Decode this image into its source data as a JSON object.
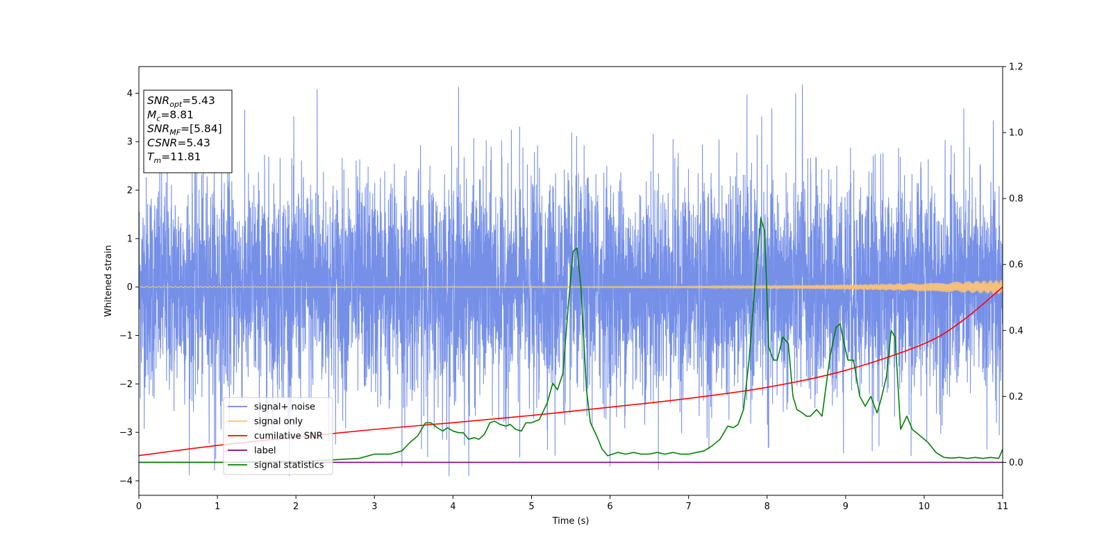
{
  "chart_data": {
    "type": "line",
    "xlabel": "Time (s)",
    "ylabel": "Whitened strain",
    "xlim": [
      0,
      11
    ],
    "ylim": [
      -4.3,
      4.55
    ],
    "y2lim": [
      -0.1,
      1.2
    ],
    "xticks": [
      0,
      1,
      2,
      3,
      4,
      5,
      6,
      7,
      8,
      9,
      10,
      11
    ],
    "yticks": [
      -4,
      -3,
      -2,
      -1,
      0,
      1,
      2,
      3,
      4
    ],
    "y2ticks": [
      "0.0",
      "0.2",
      "0.4",
      "0.6",
      "0.8",
      "1.0",
      "1.2"
    ],
    "legend_position": "lower-left",
    "info_box": {
      "position": "top-left",
      "lines": [
        {
          "sym": "SNR",
          "sub": "opt",
          "value": "=5.43"
        },
        {
          "sym": "M",
          "sub": "c",
          "value": "=8.81"
        },
        {
          "sym": "SNR",
          "sub": "MF",
          "value": "=[5.84]"
        },
        {
          "sym": "CSNR",
          "sub": "",
          "value": "=5.43"
        },
        {
          "sym": "T",
          "sub": "m",
          "value": "=11.81"
        }
      ]
    },
    "noise_band": {
      "typical_amplitude": 1.8,
      "spike_max": 4.18,
      "spike_min": -3.9,
      "large_spikes": [
        {
          "x": 2.27,
          "y": 4.08
        },
        {
          "x": 4.07,
          "y": 4.13
        },
        {
          "x": 8.45,
          "y": 4.18
        },
        {
          "x": 7.93,
          "y": 3.52
        },
        {
          "x": 10.88,
          "y": 3.43
        },
        {
          "x": 4.2,
          "y": -3.9
        },
        {
          "x": 3.35,
          "y": -3.7
        },
        {
          "x": 0.98,
          "y": -3.55
        },
        {
          "x": 4.85,
          "y": -3.52
        },
        {
          "x": 5.3,
          "y": -3.48
        },
        {
          "x": 8.02,
          "y": -3.32
        },
        {
          "x": 10.8,
          "y": -3.35
        }
      ]
    },
    "signal_only": {
      "amp_start": 0.01,
      "amp_end": 0.15
    },
    "series": [
      {
        "name": "signal+ noise",
        "color": "#6a87e6",
        "axis": "left"
      },
      {
        "name": "signal only",
        "color": "#f5c07a",
        "axis": "left"
      },
      {
        "name": "cumilative SNR",
        "color": "#ff0000",
        "axis": "left",
        "x": [
          0,
          1,
          2,
          3,
          4,
          5,
          6,
          7,
          8,
          9,
          10,
          10.5,
          11
        ],
        "y": [
          -3.48,
          -3.27,
          -3.1,
          -2.94,
          -2.8,
          -2.65,
          -2.48,
          -2.3,
          -2.07,
          -1.72,
          -1.17,
          -0.68,
          0
        ]
      },
      {
        "name": "label",
        "color": "#800080",
        "axis": "right",
        "x": [
          0,
          11
        ],
        "y": [
          0,
          0
        ]
      },
      {
        "name": "signal statistics",
        "color": "#008000",
        "axis": "right",
        "x": [
          0,
          1,
          2,
          2.5,
          2.8,
          3.0,
          3.2,
          3.35,
          3.45,
          3.55,
          3.65,
          3.72,
          3.8,
          3.87,
          3.93,
          4.0,
          4.07,
          4.13,
          4.2,
          4.27,
          4.33,
          4.4,
          4.47,
          4.53,
          4.6,
          4.67,
          4.73,
          4.8,
          4.87,
          4.93,
          5.0,
          5.1,
          5.2,
          5.27,
          5.33,
          5.4,
          5.47,
          5.53,
          5.58,
          5.63,
          5.7,
          5.75,
          5.83,
          5.9,
          5.97,
          6.03,
          6.1,
          6.2,
          6.3,
          6.4,
          6.5,
          6.6,
          6.7,
          6.8,
          6.9,
          7.0,
          7.1,
          7.2,
          7.3,
          7.4,
          7.5,
          7.57,
          7.63,
          7.7,
          7.77,
          7.85,
          7.92,
          7.97,
          8.02,
          8.08,
          8.13,
          8.2,
          8.27,
          8.33,
          8.38,
          8.45,
          8.5,
          8.55,
          8.63,
          8.7,
          8.8,
          8.88,
          8.93,
          8.98,
          9.03,
          9.1,
          9.18,
          9.25,
          9.32,
          9.4,
          9.45,
          9.52,
          9.58,
          9.63,
          9.7,
          9.78,
          9.85,
          9.95,
          10.05,
          10.15,
          10.25,
          10.35,
          10.45,
          10.55,
          10.65,
          10.75,
          10.85,
          10.95,
          11.0
        ],
        "y": [
          0.0,
          0.0,
          0.003,
          0.008,
          0.012,
          0.025,
          0.025,
          0.035,
          0.06,
          0.08,
          0.12,
          0.12,
          0.105,
          0.095,
          0.105,
          0.095,
          0.09,
          0.09,
          0.07,
          0.075,
          0.07,
          0.085,
          0.12,
          0.125,
          0.115,
          0.11,
          0.115,
          0.1,
          0.095,
          0.12,
          0.12,
          0.13,
          0.18,
          0.24,
          0.22,
          0.27,
          0.48,
          0.64,
          0.65,
          0.53,
          0.22,
          0.12,
          0.08,
          0.04,
          0.02,
          0.025,
          0.03,
          0.025,
          0.03,
          0.025,
          0.025,
          0.03,
          0.025,
          0.03,
          0.025,
          0.025,
          0.03,
          0.035,
          0.05,
          0.07,
          0.11,
          0.105,
          0.115,
          0.16,
          0.31,
          0.55,
          0.74,
          0.7,
          0.35,
          0.31,
          0.31,
          0.38,
          0.36,
          0.2,
          0.16,
          0.15,
          0.14,
          0.14,
          0.16,
          0.14,
          0.32,
          0.41,
          0.42,
          0.36,
          0.31,
          0.31,
          0.2,
          0.17,
          0.2,
          0.15,
          0.19,
          0.26,
          0.4,
          0.38,
          0.1,
          0.14,
          0.1,
          0.08,
          0.06,
          0.03,
          0.015,
          0.013,
          0.015,
          0.012,
          0.015,
          0.012,
          0.015,
          0.012,
          0.04
        ]
      }
    ]
  }
}
